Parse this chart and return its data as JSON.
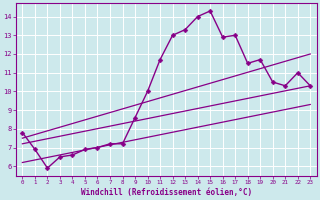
{
  "xlabel": "Windchill (Refroidissement éolien,°C)",
  "background_color": "#cde9ec",
  "grid_color": "#ffffff",
  "line_color": "#880088",
  "xlim": [
    -0.5,
    23.5
  ],
  "ylim": [
    5.5,
    14.7
  ],
  "xticks": [
    0,
    1,
    2,
    3,
    4,
    5,
    6,
    7,
    8,
    9,
    10,
    11,
    12,
    13,
    14,
    15,
    16,
    17,
    18,
    19,
    20,
    21,
    22,
    23
  ],
  "yticks": [
    6,
    7,
    8,
    9,
    10,
    11,
    12,
    13,
    14
  ],
  "series": [
    {
      "x": [
        0,
        1,
        2,
        3,
        4,
        5,
        6,
        7,
        8,
        9,
        10,
        11,
        12,
        13,
        14,
        15,
        16,
        17,
        18,
        19,
        20,
        21,
        22,
        23
      ],
      "y": [
        7.8,
        6.9,
        5.9,
        6.5,
        6.6,
        6.9,
        7.0,
        7.2,
        7.2,
        8.6,
        10.0,
        11.7,
        13.0,
        13.3,
        14.0,
        14.3,
        12.9,
        13.0,
        11.5,
        11.7,
        10.5,
        10.3,
        11.0,
        10.3
      ],
      "marker": "D",
      "markersize": 2.5,
      "linewidth": 1.0,
      "has_marker": true
    },
    {
      "x": [
        0,
        23
      ],
      "y": [
        7.2,
        10.3
      ],
      "marker": null,
      "markersize": 0,
      "linewidth": 0.9,
      "has_marker": false
    },
    {
      "x": [
        0,
        23
      ],
      "y": [
        6.2,
        9.3
      ],
      "marker": null,
      "markersize": 0,
      "linewidth": 0.9,
      "has_marker": false
    },
    {
      "x": [
        0,
        23
      ],
      "y": [
        7.5,
        12.0
      ],
      "marker": null,
      "markersize": 0,
      "linewidth": 0.9,
      "has_marker": false
    }
  ]
}
